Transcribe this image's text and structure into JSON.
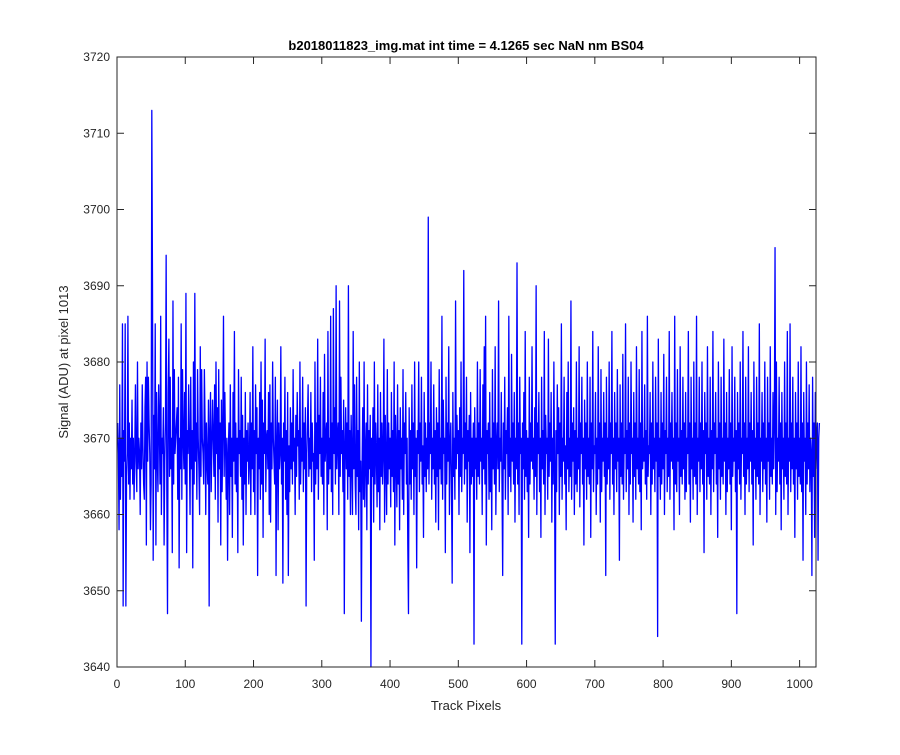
{
  "chart_data": {
    "type": "line",
    "title": "b2018011823_img.mat int time = 4.1265 sec  NaN nm BS04",
    "xlabel": "Track Pixels",
    "ylabel": "Signal (ADU) at pixel 1013",
    "xlim": [
      0,
      1024
    ],
    "ylim": [
      3640,
      3720
    ],
    "xticks": [
      0,
      100,
      200,
      300,
      400,
      500,
      600,
      700,
      800,
      900,
      1000
    ],
    "yticks": [
      3640,
      3650,
      3660,
      3670,
      3680,
      3690,
      3700,
      3710,
      3720
    ],
    "grid": false,
    "legend": "none",
    "series": [
      {
        "color": "#0000ff",
        "x_start": 1,
        "x_step": 1,
        "values": [
          3672,
          3668,
          3658,
          3677,
          3662,
          3670,
          3665,
          3685,
          3648,
          3671,
          3667,
          3685,
          3648,
          3665,
          3668,
          3686,
          3664,
          3672,
          3662,
          3670,
          3666,
          3675,
          3664,
          3670,
          3662,
          3668,
          3677,
          3667,
          3663,
          3680,
          3666,
          3670,
          3668,
          3660,
          3672,
          3666,
          3677,
          3669,
          3664,
          3662,
          3674,
          3678,
          3656,
          3680,
          3667,
          3678,
          3672,
          3668,
          3658,
          3664,
          3713,
          3690,
          3654,
          3673,
          3666,
          3685,
          3656,
          3676,
          3668,
          3663,
          3677,
          3672,
          3664,
          3686,
          3660,
          3670,
          3668,
          3674,
          3656,
          3667,
          3672,
          3694,
          3663,
          3647,
          3676,
          3683,
          3665,
          3678,
          3666,
          3670,
          3655,
          3688,
          3664,
          3679,
          3668,
          3670,
          3672,
          3674,
          3662,
          3678,
          3653,
          3670,
          3666,
          3685,
          3662,
          3679,
          3670,
          3666,
          3676,
          3664,
          3689,
          3655,
          3671,
          3668,
          3677,
          3669,
          3660,
          3678,
          3666,
          3671,
          3653,
          3680,
          3664,
          3689,
          3667,
          3672,
          3662,
          3679,
          3670,
          3666,
          3660,
          3682,
          3665,
          3679,
          3670,
          3668,
          3664,
          3679,
          3672,
          3660,
          3672,
          3667,
          3664,
          3675,
          3648,
          3671,
          3676,
          3663,
          3669,
          3675,
          3670,
          3665,
          3677,
          3662,
          3680,
          3668,
          3674,
          3659,
          3679,
          3666,
          3672,
          3656,
          3675,
          3663,
          3671,
          3686,
          3665,
          3676,
          3669,
          3662,
          3670,
          3654,
          3668,
          3672,
          3660,
          3677,
          3665,
          3670,
          3657,
          3676,
          3667,
          3684,
          3664,
          3672,
          3663,
          3670,
          3655,
          3679,
          3668,
          3671,
          3665,
          3678,
          3662,
          3673,
          3656,
          3670,
          3664,
          3676,
          3660,
          3671,
          3667,
          3672,
          3664,
          3667,
          3676,
          3660,
          3672,
          3666,
          3682,
          3663,
          3671,
          3660,
          3677,
          3668,
          3674,
          3652,
          3670,
          3666,
          3676,
          3662,
          3680,
          3664,
          3675,
          3657,
          3672,
          3668,
          3683,
          3663,
          3670,
          3671,
          3666,
          3676,
          3660,
          3677,
          3659,
          3672,
          3666,
          3680,
          3670,
          3667,
          3664,
          3678,
          3652,
          3669,
          3675,
          3658,
          3672,
          3666,
          3668,
          3682,
          3664,
          3670,
          3651,
          3672,
          3667,
          3678,
          3662,
          3671,
          3660,
          3676,
          3652,
          3669,
          3663,
          3674,
          3666,
          3672,
          3664,
          3679,
          3667,
          3670,
          3660,
          3673,
          3665,
          3676,
          3669,
          3671,
          3662,
          3680,
          3664,
          3670,
          3667,
          3678,
          3663,
          3672,
          3666,
          3674,
          3648,
          3668,
          3672,
          3677,
          3665,
          3670,
          3666,
          3676,
          3663,
          3672,
          3667,
          3668,
          3654,
          3680,
          3664,
          3672,
          3666,
          3683,
          3662,
          3673,
          3668,
          3678,
          3665,
          3670,
          3664,
          3676,
          3660,
          3681,
          3667,
          3670,
          3672,
          3658,
          3684,
          3664,
          3670,
          3666,
          3686,
          3663,
          3672,
          3660,
          3687,
          3668,
          3674,
          3664,
          3690,
          3666,
          3670,
          3672,
          3660,
          3688,
          3665,
          3678,
          3668,
          3671,
          3663,
          3675,
          3647,
          3669,
          3674,
          3666,
          3672,
          3662,
          3690,
          3665,
          3671,
          3660,
          3673,
          3667,
          3660,
          3684,
          3666,
          3677,
          3664,
          3660,
          3678,
          3665,
          3671,
          3658,
          3680,
          3663,
          3667,
          3646,
          3666,
          3674,
          3662,
          3680,
          3661,
          3668,
          3672,
          3658,
          3677,
          3664,
          3671,
          3666,
          3673,
          3640,
          3670,
          3665,
          3674,
          3659,
          3680,
          3664,
          3672,
          3668,
          3661,
          3677,
          3663,
          3670,
          3658,
          3676,
          3665,
          3672,
          3664,
          3668,
          3683,
          3659,
          3673,
          3667,
          3660,
          3679,
          3664,
          3672,
          3666,
          3670,
          3661,
          3676,
          3665,
          3671,
          3663,
          3680,
          3656,
          3673,
          3668,
          3661,
          3677,
          3664,
          3671,
          3658,
          3674,
          3666,
          3670,
          3662,
          3679,
          3660,
          3672,
          3668,
          3676,
          3664,
          3670,
          3656,
          3647,
          3674,
          3664,
          3671,
          3662,
          3677,
          3666,
          3672,
          3660,
          3680,
          3665,
          3670,
          3653,
          3671,
          3668,
          3680,
          3663,
          3672,
          3667,
          3678,
          3664,
          3669,
          3657,
          3676,
          3665,
          3672,
          3663,
          3670,
          3666,
          3699,
          3664,
          3672,
          3668,
          3680,
          3662,
          3670,
          3666,
          3677,
          3664,
          3671,
          3659,
          3674,
          3665,
          3672,
          3658,
          3679,
          3666,
          3670,
          3664,
          3686,
          3662,
          3675,
          3668,
          3670,
          3655,
          3678,
          3664,
          3672,
          3667,
          3682,
          3660,
          3669,
          3672,
          3664,
          3651,
          3676,
          3665,
          3670,
          3662,
          3688,
          3666,
          3673,
          3668,
          3671,
          3660,
          3674,
          3665,
          3680,
          3663,
          3670,
          3668,
          3692,
          3664,
          3672,
          3666,
          3678,
          3659,
          3671,
          3667,
          3673,
          3655,
          3676,
          3664,
          3670,
          3665,
          3672,
          3643,
          3674,
          3666,
          3670,
          3662,
          3680,
          3665,
          3672,
          3664,
          3679,
          3667,
          3670,
          3660,
          3677,
          3666,
          3682,
          3664,
          3686,
          3656,
          3671,
          3668,
          3672,
          3662,
          3676,
          3663,
          3670,
          3658,
          3679,
          3666,
          3672,
          3664,
          3682,
          3660,
          3669,
          3672,
          3666,
          3688,
          3663,
          3670,
          3667,
          3676,
          3664,
          3652,
          3672,
          3666,
          3678,
          3662,
          3671,
          3668,
          3674,
          3660,
          3686,
          3665,
          3670,
          3663,
          3681,
          3667,
          3672,
          3664,
          3676,
          3659,
          3670,
          3666,
          3693,
          3664,
          3672,
          3660,
          3678,
          3668,
          3670,
          3643,
          3672,
          3666,
          3676,
          3662,
          3684,
          3665,
          3671,
          3663,
          3670,
          3657,
          3678,
          3664,
          3672,
          3667,
          3682,
          3666,
          3670,
          3662,
          3674,
          3665,
          3690,
          3660,
          3672,
          3668,
          3676,
          3663,
          3670,
          3657,
          3678,
          3666,
          3671,
          3664,
          3684,
          3660,
          3673,
          3668,
          3670,
          3662,
          3683,
          3665,
          3672,
          3667,
          3676,
          3659,
          3670,
          3664,
          3680,
          3666,
          3643,
          3671,
          3663,
          3677,
          3668,
          3674,
          3660,
          3672,
          3665,
          3685,
          3662,
          3670,
          3667,
          3678,
          3664,
          3669,
          3658,
          3676,
          3666,
          3680,
          3663,
          3670,
          3665,
          3688,
          3662,
          3672,
          3667,
          3674,
          3660,
          3671,
          3664,
          3680,
          3663,
          3670,
          3666,
          3682,
          3661,
          3672,
          3668,
          3678,
          3664,
          3670,
          3656,
          3675,
          3666,
          3672,
          3662,
          3680,
          3665,
          3670,
          3664,
          3678,
          3657,
          3672,
          3666,
          3684,
          3663,
          3669,
          3668,
          3676,
          3660,
          3670,
          3664,
          3682,
          3666,
          3672,
          3659,
          3679,
          3663,
          3670,
          3667,
          3676,
          3665,
          3672,
          3652,
          3678,
          3664,
          3670,
          3666,
          3680,
          3662,
          3672,
          3668,
          3684,
          3664,
          3670,
          3660,
          3676,
          3666,
          3672,
          3663,
          3679,
          3667,
          3670,
          3654,
          3677,
          3665,
          3672,
          3664,
          3681,
          3662,
          3670,
          3668,
          3685,
          3663,
          3671,
          3666,
          3678,
          3660,
          3672,
          3664,
          3680,
          3668,
          3670,
          3659,
          3676,
          3665,
          3672,
          3662,
          3682,
          3666,
          3670,
          3664,
          3679,
          3663,
          3672,
          3658,
          3684,
          3666,
          3670,
          3667,
          3677,
          3664,
          3671,
          3662,
          3686,
          3665,
          3669,
          3668,
          3676,
          3660,
          3672,
          3664,
          3680,
          3666,
          3670,
          3663,
          3678,
          3667,
          3672,
          3644,
          3683,
          3665,
          3670,
          3662,
          3676,
          3664,
          3672,
          3666,
          3681,
          3660,
          3671,
          3668,
          3678,
          3663,
          3670,
          3665,
          3684,
          3662,
          3672,
          3667,
          3676,
          3666,
          3670,
          3658,
          3686,
          3664,
          3672,
          3663,
          3679,
          3667,
          3670,
          3660,
          3682,
          3665,
          3671,
          3664,
          3678,
          3666,
          3672,
          3662,
          3676,
          3663,
          3670,
          3668,
          3684,
          3664,
          3672,
          3659,
          3678,
          3666,
          3670,
          3662,
          3680,
          3665,
          3672,
          3664,
          3686,
          3660,
          3670,
          3667,
          3678,
          3663,
          3672,
          3666,
          3680,
          3664,
          3671,
          3655,
          3676,
          3668,
          3672,
          3662,
          3682,
          3665,
          3670,
          3664,
          3678,
          3660,
          3671,
          3666,
          3684,
          3663,
          3672,
          3668,
          3676,
          3664,
          3670,
          3657,
          3680,
          3666,
          3672,
          3662,
          3678,
          3665,
          3670,
          3664,
          3683,
          3667,
          3672,
          3660,
          3676,
          3663,
          3670,
          3666,
          3679,
          3664,
          3672,
          3658,
          3682,
          3665,
          3670,
          3667,
          3678,
          3663,
          3671,
          3647,
          3676,
          3666,
          3672,
          3664,
          3680,
          3662,
          3670,
          3668,
          3684,
          3665,
          3672,
          3660,
          3678,
          3664,
          3670,
          3666,
          3682,
          3663,
          3672,
          3667,
          3676,
          3664,
          3671,
          3656,
          3680,
          3666,
          3670,
          3662,
          3678,
          3665,
          3672,
          3664,
          3685,
          3660,
          3670,
          3667,
          3676,
          3663,
          3672,
          3666,
          3680,
          3664,
          3670,
          3659,
          3678,
          3667,
          3672,
          3662,
          3682,
          3665,
          3670,
          3664,
          3676,
          3666,
          3672,
          3695,
          3660,
          3680,
          3663,
          3670,
          3667,
          3678,
          3664,
          3672,
          3658,
          3676,
          3666,
          3670,
          3662,
          3680,
          3665,
          3672,
          3664,
          3684,
          3660,
          3670,
          3667,
          3685,
          3663,
          3672,
          3666,
          3678,
          3664,
          3670,
          3657,
          3676,
          3666,
          3672,
          3662,
          3680,
          3665,
          3670,
          3664,
          3682,
          3663,
          3672,
          3654,
          3676,
          3667,
          3670,
          3660,
          3680,
          3664,
          3672,
          3666,
          3677,
          3663,
          3670,
          3668,
          3652,
          3678,
          3665,
          3672,
          3657,
          3676,
          3666,
          3670,
          3672,
          3654,
          3670,
          3672
        ]
      }
    ]
  }
}
